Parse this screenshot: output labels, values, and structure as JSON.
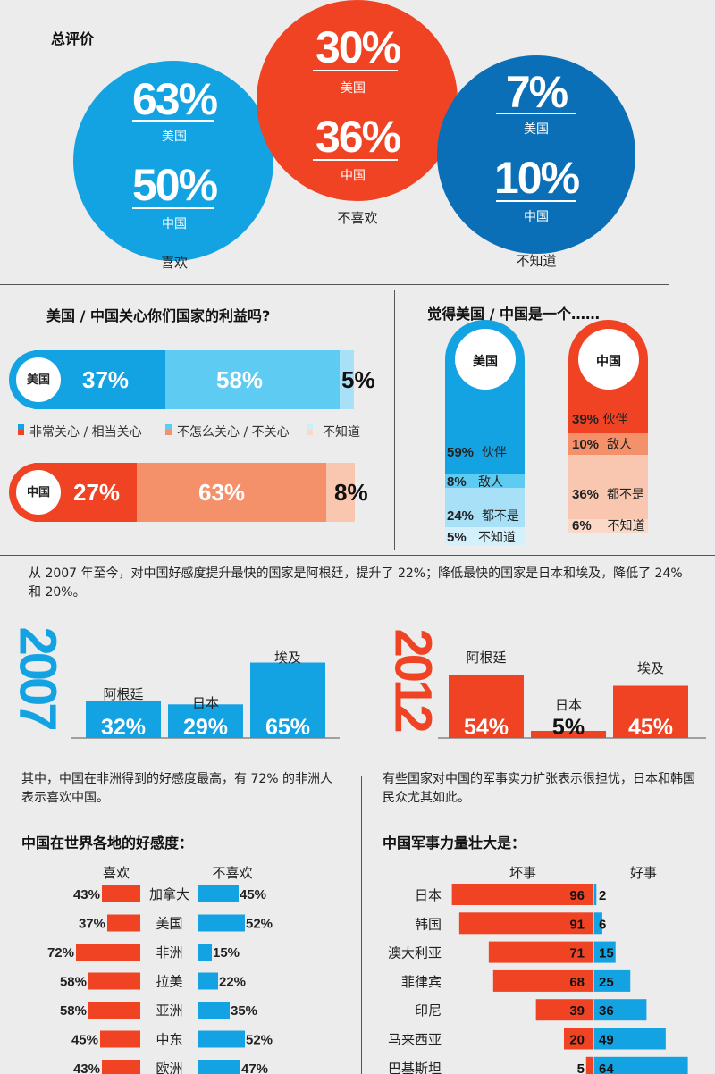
{
  "colors": {
    "blue": "#13a3e3",
    "dark_blue": "#0a6fb6",
    "red": "#f04323",
    "light_blue": "#5ecbf2",
    "pale_blue": "#a8e1f7",
    "salmon": "#f4906a",
    "pale_salmon": "#f9c7b0"
  },
  "chart_data": [
    {
      "type": "bubble",
      "title": "总评价",
      "groups": [
        {
          "label": "喜欢",
          "items": [
            {
              "value": "63%",
              "name": "美国"
            },
            {
              "value": "50%",
              "name": "中国"
            }
          ]
        },
        {
          "label": "不喜欢",
          "items": [
            {
              "value": "30%",
              "name": "美国"
            },
            {
              "value": "36%",
              "name": "中国"
            }
          ]
        },
        {
          "label": "不知道",
          "items": [
            {
              "value": "7%",
              "name": "美国"
            },
            {
              "value": "10%",
              "name": "中国"
            }
          ]
        }
      ]
    },
    {
      "type": "stacked-bar",
      "title": "美国 / 中国关心你们国家的利益吗?",
      "categories": [
        "美国",
        "中国"
      ],
      "series": [
        {
          "name": "非常关心 / 相当关心",
          "values": [
            37,
            27
          ]
        },
        {
          "name": "不怎么关心 / 不关心",
          "values": [
            58,
            63
          ]
        },
        {
          "name": "不知道",
          "values": [
            5,
            8
          ]
        }
      ],
      "labels": [
        [
          "37%",
          "58%",
          "5%"
        ],
        [
          "27%",
          "63%",
          "8%"
        ]
      ]
    },
    {
      "type": "stacked-bar",
      "title": "觉得美国 / 中国是一个……",
      "columns": [
        {
          "name": "美国",
          "segments": [
            {
              "value": 59,
              "label": "59%",
              "name": "伙伴"
            },
            {
              "value": 8,
              "label": "8%",
              "name": "敌人"
            },
            {
              "value": 24,
              "label": "24%",
              "name": "都不是"
            },
            {
              "value": 5,
              "label": "5%",
              "name": "不知道"
            }
          ]
        },
        {
          "name": "中国",
          "segments": [
            {
              "value": 39,
              "label": "39%",
              "name": "伙伴"
            },
            {
              "value": 10,
              "label": "10%",
              "name": "敌人"
            },
            {
              "value": 36,
              "label": "36%",
              "name": "都不是"
            },
            {
              "value": 6,
              "label": "6%",
              "name": "不知道"
            }
          ]
        }
      ]
    },
    {
      "type": "bar",
      "intro": "从 2007 年至今，对中国好感度提升最快的国家是阿根廷，提升了 22%；降低最快的国家是日本和埃及，降低了 24% 和 20%。",
      "groups": [
        {
          "year": "2007",
          "categories": [
            "阿根廷",
            "日本",
            "埃及"
          ],
          "values": [
            32,
            29,
            65
          ],
          "labels": [
            "32%",
            "29%",
            "65%"
          ]
        },
        {
          "year": "2012",
          "categories": [
            "阿根廷",
            "日本",
            "埃及"
          ],
          "values": [
            54,
            5,
            45
          ],
          "labels": [
            "54%",
            "5%",
            "45%"
          ]
        }
      ]
    },
    {
      "type": "diverging-bar",
      "intro": "其中，中国在非洲得到的好感度最高，有 72% 的非洲人表示喜欢中国。",
      "title": "中国在世界各地的好感度：",
      "left_label": "喜欢",
      "right_label": "不喜欢",
      "categories": [
        "加拿大",
        "美国",
        "非洲",
        "拉美",
        "亚洲",
        "中东",
        "欧洲"
      ],
      "left_values": [
        43,
        37,
        72,
        58,
        58,
        45,
        43
      ],
      "right_values": [
        45,
        52,
        15,
        22,
        35,
        52,
        47
      ],
      "left_labels": [
        "43%",
        "37%",
        "72%",
        "58%",
        "58%",
        "45%",
        "43%"
      ],
      "right_labels": [
        "45%",
        "52%",
        "15%",
        "22%",
        "35%",
        "52%",
        "47%"
      ]
    },
    {
      "type": "diverging-bar",
      "intro": "有些国家对中国的军事实力扩张表示很担忧，日本和韩国民众尤其如此。",
      "title": "中国军事力量壮大是：",
      "left_label": "坏事",
      "right_label": "好事",
      "categories": [
        "日本",
        "韩国",
        "澳大利亚",
        "菲律宾",
        "印尼",
        "马来西亚",
        "巴基斯坦"
      ],
      "left_values": [
        96,
        91,
        71,
        68,
        39,
        20,
        5
      ],
      "right_values": [
        2,
        6,
        15,
        25,
        36,
        49,
        64
      ]
    }
  ]
}
